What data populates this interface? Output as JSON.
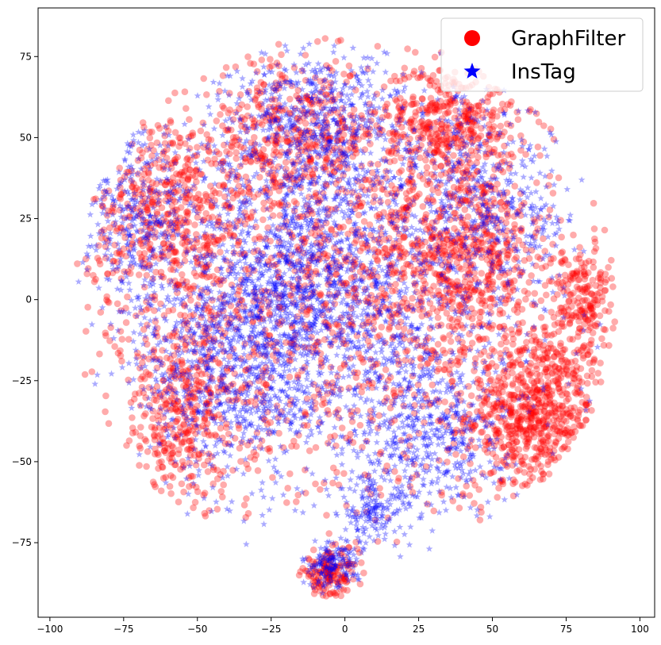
{
  "chart_data": {
    "type": "scatter",
    "title": "",
    "xlabel": "",
    "ylabel": "",
    "xlim": [
      -104,
      105
    ],
    "ylim": [
      -98,
      90
    ],
    "grid": false,
    "x_ticks": [
      -100,
      -75,
      -50,
      -25,
      0,
      25,
      50,
      75,
      100
    ],
    "y_ticks": [
      -75,
      -50,
      -25,
      0,
      25,
      50,
      75
    ],
    "x_tick_labels": [
      "−100",
      "−75",
      "−50",
      "−25",
      "0",
      "25",
      "50",
      "75",
      "100"
    ],
    "y_tick_labels": [
      "−75",
      "−50",
      "−25",
      "0",
      "25",
      "50",
      "75"
    ],
    "legend_position": "top-right",
    "series": [
      {
        "name": "GraphFilter",
        "marker": "circle",
        "color": "#ff0000",
        "clusters": [
          {
            "cx": 65,
            "cy": -35,
            "rx": 20,
            "ry": 22,
            "n": 700
          },
          {
            "cx": 40,
            "cy": 15,
            "rx": 25,
            "ry": 25,
            "n": 600
          },
          {
            "cx": 35,
            "cy": 55,
            "rx": 20,
            "ry": 15,
            "n": 400
          },
          {
            "cx": -60,
            "cy": 25,
            "rx": 22,
            "ry": 28,
            "n": 500
          },
          {
            "cx": -55,
            "cy": -35,
            "rx": 20,
            "ry": 25,
            "n": 400
          },
          {
            "cx": -5,
            "cy": -85,
            "rx": 8,
            "ry": 6,
            "n": 150
          },
          {
            "cx": -20,
            "cy": 50,
            "rx": 25,
            "ry": 20,
            "n": 400
          },
          {
            "cx": 0,
            "cy": 0,
            "rx": 55,
            "ry": 55,
            "n": 1200
          },
          {
            "cx": 80,
            "cy": 0,
            "rx": 10,
            "ry": 15,
            "n": 200
          }
        ]
      },
      {
        "name": "InsTag",
        "marker": "star",
        "color": "#0000ff",
        "clusters": [
          {
            "cx": -15,
            "cy": 5,
            "rx": 30,
            "ry": 35,
            "n": 900
          },
          {
            "cx": -40,
            "cy": -20,
            "rx": 25,
            "ry": 30,
            "n": 600
          },
          {
            "cx": -10,
            "cy": 55,
            "rx": 25,
            "ry": 18,
            "n": 500
          },
          {
            "cx": 30,
            "cy": -40,
            "rx": 20,
            "ry": 20,
            "n": 400
          },
          {
            "cx": 50,
            "cy": 30,
            "rx": 25,
            "ry": 25,
            "n": 400
          },
          {
            "cx": -70,
            "cy": 25,
            "rx": 15,
            "ry": 25,
            "n": 300
          },
          {
            "cx": -5,
            "cy": -82,
            "rx": 8,
            "ry": 6,
            "n": 150
          },
          {
            "cx": 10,
            "cy": -65,
            "rx": 10,
            "ry": 8,
            "n": 150
          },
          {
            "cx": 0,
            "cy": 0,
            "rx": 55,
            "ry": 55,
            "n": 1200
          }
        ]
      }
    ]
  }
}
